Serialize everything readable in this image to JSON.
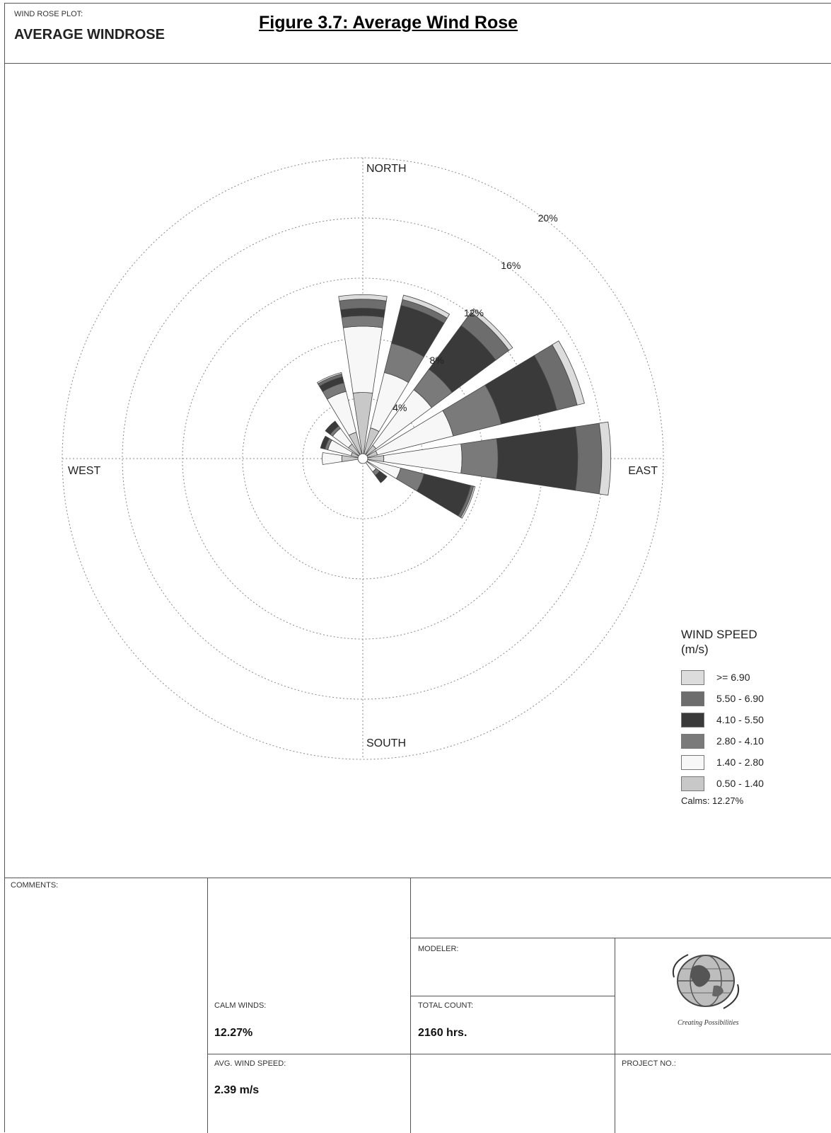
{
  "header": {
    "plot_type_label": "WIND ROSE PLOT:",
    "plot_name": "AVERAGE WINDROSE",
    "figure_title": "Figure 3.7: Average Wind Rose"
  },
  "chart_data": {
    "type": "wind-rose",
    "directions_deg": [
      0,
      22.5,
      45,
      67.5,
      90,
      112.5,
      135,
      157.5,
      180,
      202.5,
      225,
      247.5,
      270,
      292.5,
      315,
      337.5
    ],
    "directions": [
      "N",
      "NNE",
      "NE",
      "ENE",
      "E",
      "ESE",
      "SE",
      "SSE",
      "S",
      "SSW",
      "SW",
      "WSW",
      "W",
      "WNW",
      "NW",
      "NNW"
    ],
    "compass_labels": {
      "north": "NORTH",
      "east": "EAST",
      "south": "SOUTH",
      "west": "WEST"
    },
    "ring_values_pct": [
      4,
      8,
      12,
      16,
      20
    ],
    "ring_labels": [
      "4%",
      "8%",
      "12%",
      "16%",
      "20%"
    ],
    "speed_bins": [
      {
        "label": "0.50 - 1.40",
        "color": "#c8c8c8"
      },
      {
        "label": "1.40 - 2.80",
        "color": "#f7f7f7"
      },
      {
        "label": "2.80 - 4.10",
        "color": "#7a7a7a"
      },
      {
        "label": "4.10 - 5.50",
        "color": "#3a3a3a"
      },
      {
        "label": "5.50 - 6.90",
        "color": "#6d6d6d"
      },
      {
        "label": ">= 6.90",
        "color": "#dcdcdc"
      }
    ],
    "series_pct": [
      [
        4.4,
        4.4,
        0.7,
        0.5,
        0.6,
        0.3
      ],
      [
        2.1,
        3.8,
        2.0,
        2.6,
        0.4,
        0.3
      ],
      [
        1.1,
        4.6,
        1.7,
        3.6,
        1.1,
        0.3
      ],
      [
        1.0,
        5.2,
        3.3,
        3.8,
        1.4,
        0.5
      ],
      [
        1.4,
        5.2,
        2.4,
        5.3,
        1.6,
        0.6
      ],
      [
        0.2,
        2.4,
        1.6,
        3.2,
        0.2,
        0.1
      ],
      [
        0.2,
        0.9,
        0.3,
        0.6,
        0.0,
        0.0
      ],
      [
        0.1,
        0.2,
        0.0,
        0.0,
        0.0,
        0.0
      ],
      [
        0.0,
        0.0,
        0.0,
        0.0,
        0.0,
        0.0
      ],
      [
        0.0,
        0.0,
        0.0,
        0.0,
        0.0,
        0.0
      ],
      [
        0.0,
        0.0,
        0.0,
        0.0,
        0.0,
        0.0
      ],
      [
        0.1,
        0.0,
        0.0,
        0.0,
        0.0,
        0.0
      ],
      [
        1.4,
        1.3,
        0.0,
        0.0,
        0.0,
        0.0
      ],
      [
        0.8,
        1.6,
        0.2,
        0.3,
        0.0,
        0.0
      ],
      [
        1.2,
        1.3,
        0.2,
        0.4,
        0.0,
        0.0
      ],
      [
        1.8,
        2.8,
        0.6,
        0.4,
        0.2,
        0.1
      ]
    ],
    "max_pct": 20,
    "legend": {
      "title_line1": "WIND SPEED",
      "title_line2": "(m/s)",
      "items": [
        {
          "label": ">= 6.90",
          "color": "#dcdcdc"
        },
        {
          "label": "5.50 - 6.90",
          "color": "#6d6d6d"
        },
        {
          "label": "4.10 - 5.50",
          "color": "#3a3a3a"
        },
        {
          "label": "2.80 - 4.10",
          "color": "#7a7a7a"
        },
        {
          "label": "1.40 - 2.80",
          "color": "#f7f7f7"
        },
        {
          "label": "0.50 - 1.40",
          "color": "#c8c8c8"
        }
      ],
      "calms": "Calms: 12.27%"
    }
  },
  "footer": {
    "comments_label": "COMMENTS:",
    "modeler_label": "MODELER:",
    "calm_winds_label": "CALM WINDS:",
    "calm_winds_value": "12.27%",
    "total_count_label": "TOTAL COUNT:",
    "total_count_value": "2160 hrs.",
    "avg_wind_speed_label": "AVG. WIND SPEED:",
    "avg_wind_speed_value": "2.39 m/s",
    "project_no_label": "PROJECT NO.:",
    "logo_caption": "Creating Possibilities"
  }
}
